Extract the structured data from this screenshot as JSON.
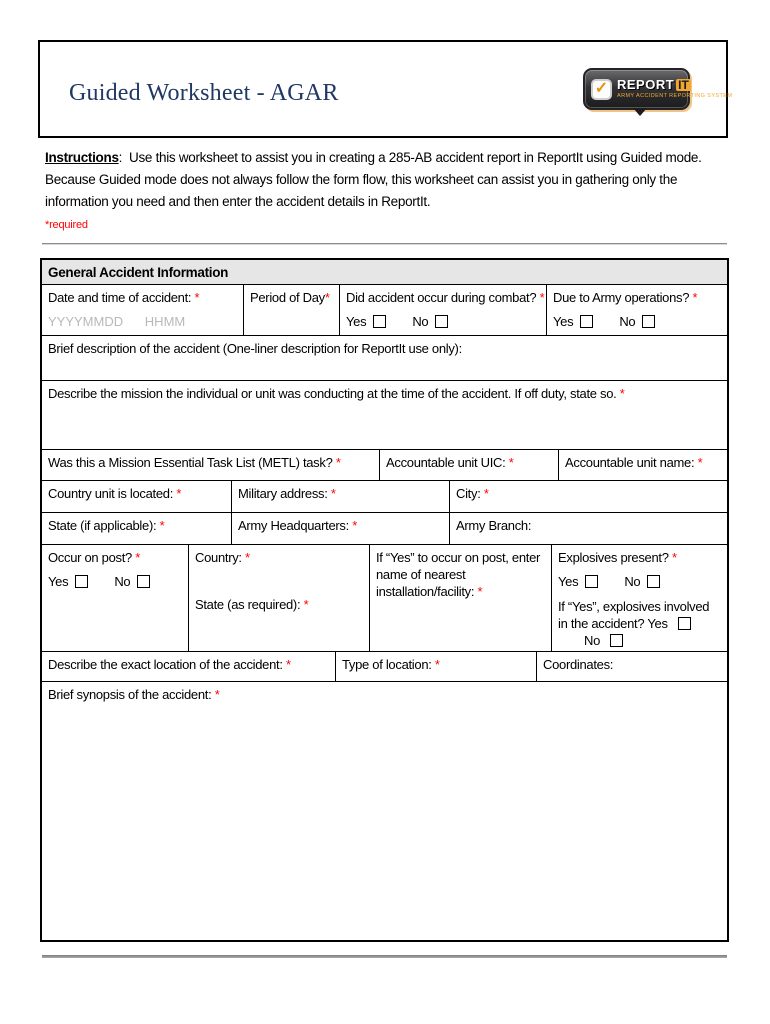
{
  "header": {
    "title": "Guided Worksheet - AGAR",
    "logo": {
      "check": "✓",
      "brand_main": "REPORT",
      "brand_accent": "IT",
      "tagline": "ARMY ACCIDENT REPORTING SYSTEM"
    }
  },
  "intro": {
    "label": "Instructions",
    "body": ":  Use this worksheet to assist you in creating a 285-AB accident report in ReportIt using Guided mode. Because Guided mode does not always follow the form flow, this worksheet can assist you in gathering only the information you need and then enter the accident details in ReportIt.",
    "required_note": "*required"
  },
  "marks": {
    "required": "*"
  },
  "colors": {
    "title_navy": "#1f3864",
    "required_red": "#ff0000",
    "section_header_gray": "#e7e6e6",
    "placeholder_gray": "#b8b8b8",
    "logo_orange": "#f0a732"
  },
  "table": {
    "section_title": "General Accident Information",
    "yes": "Yes",
    "no": "No",
    "date_time": {
      "label": "Date and time of accident: ",
      "placeholder": "YYYYMMDD      HHMM"
    },
    "period_of_day": {
      "label": "Period of Day"
    },
    "combat": {
      "label": "Did accident occur during combat? "
    },
    "army_operations": {
      "label": "Due to Army operations? "
    },
    "brief_description": {
      "label": "Brief description of the accident (One-liner description for ReportIt use only):"
    },
    "mission": {
      "label": "Describe the mission the individual or unit was conducting at the time of the accident. If off duty, state so. "
    },
    "metl": {
      "label": "Was this a Mission Essential Task List (METL) task? "
    },
    "unit_uic": {
      "label": "Accountable unit UIC: "
    },
    "unit_name": {
      "label": "Accountable unit name: "
    },
    "country_unit": {
      "label": "Country unit is located: "
    },
    "military_address": {
      "label": "Military address: "
    },
    "city": {
      "label": "City: "
    },
    "state_if_applicable": {
      "label": "State (if applicable): "
    },
    "army_headquarters": {
      "label": "Army Headquarters: "
    },
    "army_branch": {
      "label": "Army Branch:"
    },
    "occur_on_post": {
      "label": "Occur on post? "
    },
    "country": {
      "label": "Country: "
    },
    "state_as_required": {
      "label": "State (as required): "
    },
    "nearest_installation": {
      "label": "If “Yes” to occur on post, enter name of nearest installation/facility: "
    },
    "explosives_present": {
      "label": "Explosives present? "
    },
    "explosives_involved": {
      "label": "If “Yes”, explosives involved in the accident? "
    },
    "exact_location": {
      "label": "Describe the exact location of the accident: "
    },
    "type_of_location": {
      "label": "Type of location: "
    },
    "coordinates": {
      "label": "Coordinates:"
    },
    "synopsis": {
      "label": "Brief synopsis of the accident: "
    }
  }
}
